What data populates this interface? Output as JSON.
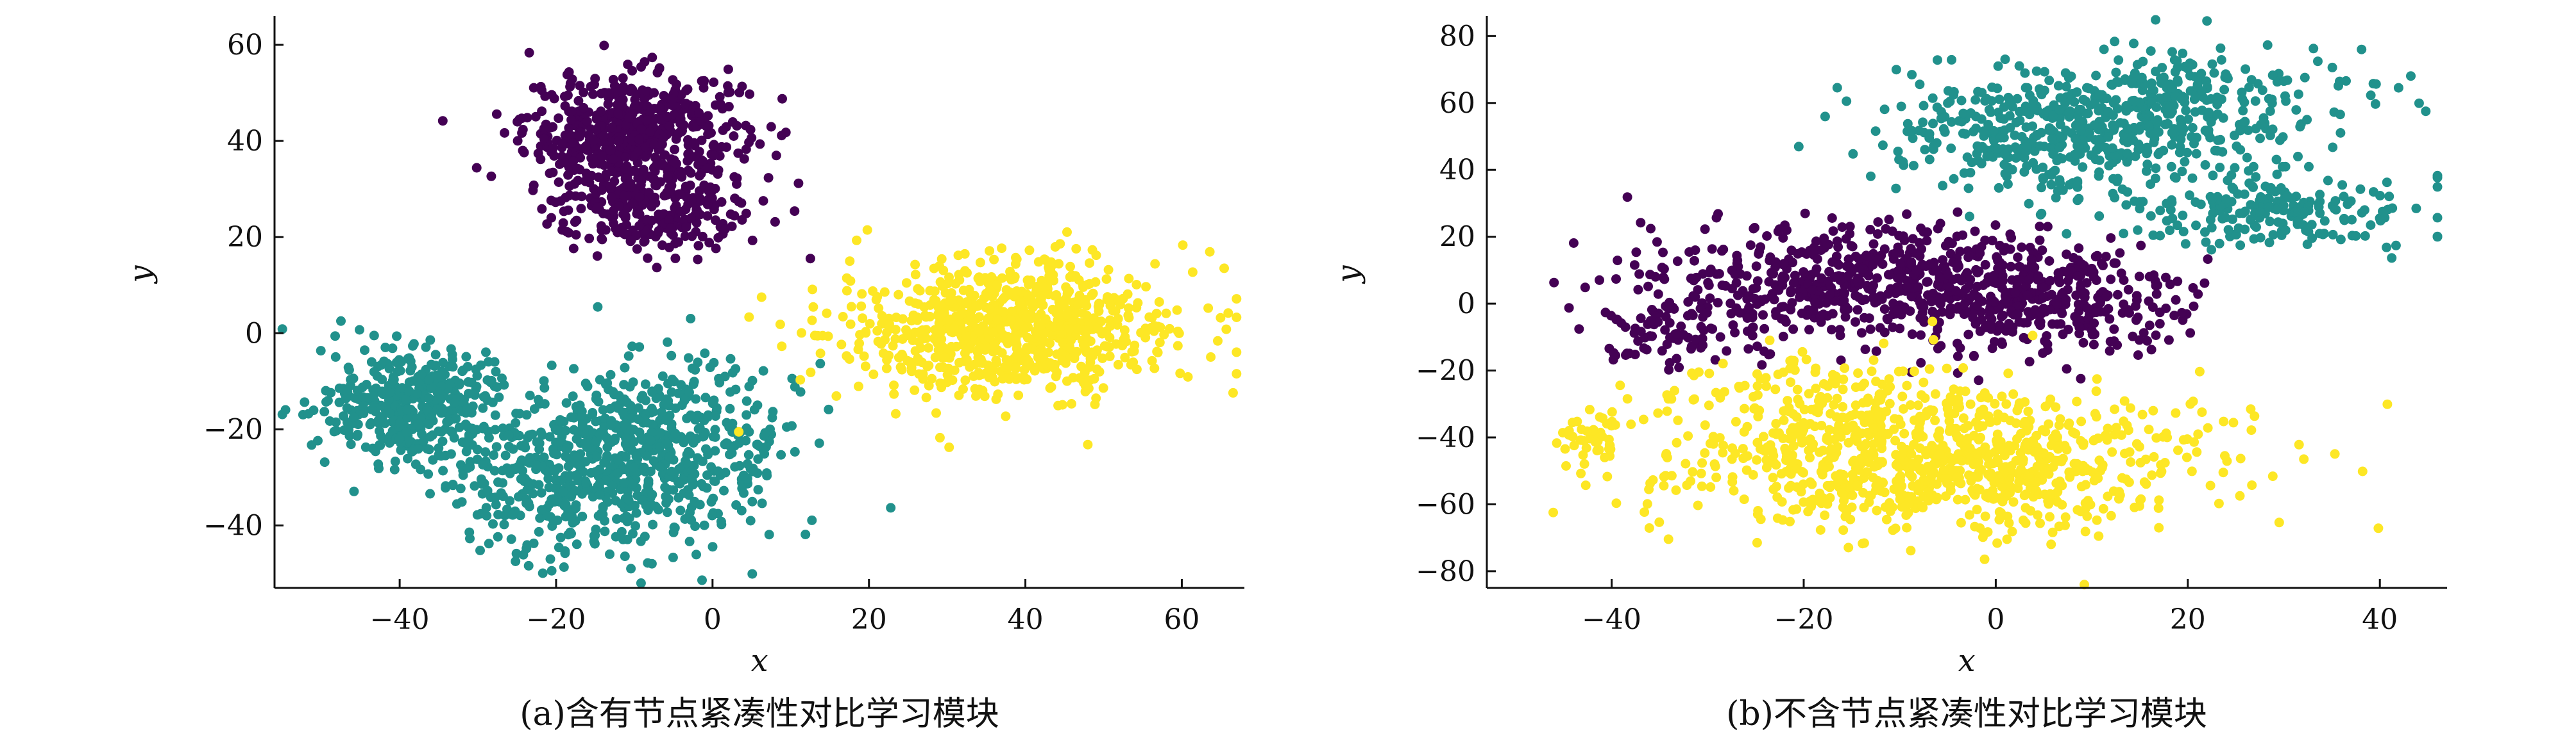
{
  "chart_data": [
    {
      "type": "scatter",
      "caption": "(a)含有节点紧凑性对比学习模块",
      "xlabel": "x",
      "ylabel": "y",
      "xlim": [
        -56,
        68
      ],
      "ylim": [
        -53,
        66
      ],
      "xticks": [
        -40,
        -20,
        0,
        20,
        40,
        60
      ],
      "yticks": [
        -40,
        -20,
        0,
        20,
        40,
        60
      ],
      "xtick_labels": [
        "−40",
        "−20",
        "0",
        "20",
        "40",
        "60"
      ],
      "ytick_labels": [
        "−40",
        "−20",
        "0",
        "20",
        "40",
        "60"
      ],
      "grid": false,
      "series": [
        {
          "color": "#440154",
          "clusters": [
            {
              "center": [
                -10,
                42
              ],
              "spread": [
                7,
                6
              ],
              "count": 520
            },
            {
              "center": [
                -8,
                26
              ],
              "spread": [
                7,
                5
              ],
              "count": 260
            }
          ]
        },
        {
          "color": "#21918c",
          "clusters": [
            {
              "center": [
                -38,
                -15
              ],
              "spread": [
                6,
                6
              ],
              "count": 420
            },
            {
              "center": [
                -6,
                -24
              ],
              "spread": [
                8,
                9
              ],
              "count": 520
            },
            {
              "center": [
                -20,
                -30
              ],
              "spread": [
                7,
                8
              ],
              "count": 300
            }
          ]
        },
        {
          "color": "#fde725",
          "clusters": [
            {
              "center": [
                38,
                1
              ],
              "spread": [
                11,
                7
              ],
              "count": 820
            }
          ]
        }
      ]
    },
    {
      "type": "scatter",
      "caption": "(b)不含节点紧凑性对比学习模块",
      "xlabel": "x",
      "ylabel": "y",
      "xlim": [
        -53,
        47
      ],
      "ylim": [
        -85,
        86
      ],
      "xticks": [
        -40,
        -20,
        0,
        20,
        40
      ],
      "yticks": [
        -80,
        -60,
        -40,
        -20,
        0,
        20,
        40,
        60,
        80
      ],
      "xtick_labels": [
        "−40",
        "−20",
        "0",
        "20",
        "40"
      ],
      "ytick_labels": [
        "−80",
        "−60",
        "−40",
        "−20",
        "0",
        "20",
        "40",
        "60",
        "80"
      ],
      "grid": false,
      "series": [
        {
          "color": "#440154",
          "clusters": [
            {
              "center": [
                -14,
                6
              ],
              "spread": [
                11,
                9
              ],
              "count": 560
            },
            {
              "center": [
                5,
                0
              ],
              "spread": [
                8,
                8
              ],
              "count": 300
            },
            {
              "center": [
                -34,
                -8
              ],
              "spread": [
                5,
                5
              ],
              "count": 80
            }
          ]
        },
        {
          "color": "#21918c",
          "clusters": [
            {
              "center": [
                8,
                52
              ],
              "spread": [
                11,
                10
              ],
              "count": 500
            },
            {
              "center": [
                30,
                28
              ],
              "spread": [
                7,
                6
              ],
              "count": 200
            },
            {
              "center": [
                22,
                62
              ],
              "spread": [
                8,
                7
              ],
              "count": 150
            }
          ]
        },
        {
          "color": "#fde725",
          "clusters": [
            {
              "center": [
                -5,
                -48
              ],
              "spread": [
                14,
                10
              ],
              "count": 820
            },
            {
              "center": [
                -18,
                -30
              ],
              "spread": [
                9,
                8
              ],
              "count": 200
            },
            {
              "center": [
                -42,
                -40
              ],
              "spread": [
                2,
                4
              ],
              "count": 40
            }
          ]
        }
      ]
    }
  ]
}
